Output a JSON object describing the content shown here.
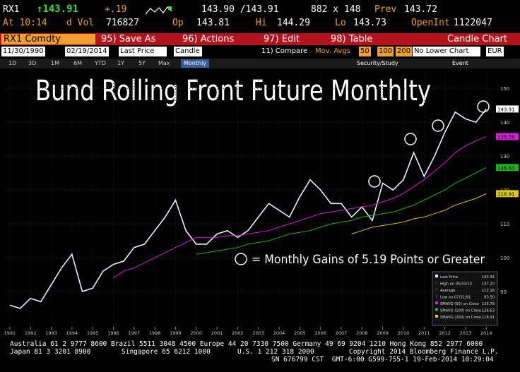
{
  "header": {
    "row1": {
      "ticker": "RX1",
      "last": "143.91",
      "change": "+.19",
      "bid_ask": "143.90 /143.91",
      "size": "882 x 148",
      "prev_label": "Prev",
      "prev": "143.72"
    },
    "row2": {
      "time": "At 10:14",
      "vol_label": "d Vol",
      "vol": "716827",
      "op_label": "Op",
      "op": "143.81",
      "hi_label": "Hi",
      "hi": "144.29",
      "lo_label": "Lo",
      "lo": "143.73",
      "oi_label": "OpenInt",
      "oi": "1122047"
    },
    "toolbar": {
      "security": "RX1 Comdty",
      "save": "95) Save As",
      "actions": "96) Actions",
      "edit": "97) Edit",
      "table": "98) Table",
      "chart_type": "Candle Chart"
    },
    "settings": {
      "start": "11/30/1990",
      "end": "02/19/2014",
      "field": "Last Price",
      "style": "Candle",
      "compare": "11) Compare",
      "mov_avgs": "Mov. Avgs",
      "ma1": "50",
      "ma2": "100",
      "ma3": "200",
      "lower": "No Lower Chart",
      "currency": "EUR"
    },
    "ranges": [
      "1D",
      "3D",
      "1M",
      "6M",
      "YTD",
      "1Y",
      "5Y",
      "Max",
      "Monthly"
    ],
    "tools": {
      "study": "Security/Study",
      "event": "Event"
    }
  },
  "chart_data": {
    "type": "line",
    "title": "Bund Rolling Front Future Monthlty",
    "annotation": "= Monthly Gains of 5.19 Points or Greater",
    "x": [
      1991,
      1991.5,
      1992,
      1992.5,
      1993,
      1993.5,
      1994,
      1994.5,
      1995,
      1995.5,
      1996,
      1996.5,
      1997,
      1997.5,
      1998,
      1998.5,
      1999,
      1999.5,
      2000,
      2000.5,
      2001,
      2001.5,
      2002,
      2002.5,
      2003,
      2003.5,
      2004,
      2004.5,
      2005,
      2005.5,
      2006,
      2006.5,
      2007,
      2007.5,
      2008,
      2008.5,
      2009,
      2009.5,
      2010,
      2010.5,
      2011,
      2011.5,
      2012,
      2012.5,
      2013,
      2013.5,
      2014
    ],
    "series": [
      {
        "name": "Last Price",
        "color": "#e8f0ff",
        "values": [
          86,
          85,
          88,
          87,
          92,
          97,
          101,
          90,
          91,
          96,
          98,
          99,
          103,
          104,
          108,
          112,
          117,
          108,
          104,
          104,
          107,
          108,
          106,
          108,
          112,
          116,
          114,
          112,
          118,
          123,
          120,
          116,
          116,
          112,
          115,
          111,
          122,
          120,
          123,
          131,
          124,
          130,
          137,
          143,
          141,
          140,
          143.91
        ]
      },
      {
        "name": "SMAVG (50) on Close",
        "color": "#d21fd2",
        "values": [
          null,
          null,
          null,
          null,
          null,
          null,
          null,
          null,
          null,
          null,
          94,
          96,
          97,
          98.5,
          100,
          101.5,
          103,
          104.5,
          106,
          106,
          106,
          106.5,
          106.5,
          107,
          107.5,
          108,
          109,
          110,
          111,
          112,
          113,
          113.5,
          114,
          114.5,
          115,
          115.5,
          116.5,
          117.5,
          119,
          121,
          123,
          125.5,
          128,
          131,
          133,
          134.5,
          135.78
        ]
      },
      {
        "name": "SMAVG (100) on Close",
        "color": "#1fb31f",
        "values": [
          null,
          null,
          null,
          null,
          null,
          null,
          null,
          null,
          null,
          null,
          null,
          null,
          null,
          null,
          null,
          null,
          null,
          null,
          101,
          101.5,
          102,
          102.5,
          103,
          104,
          104.5,
          105,
          106,
          107,
          107.5,
          108,
          109,
          110,
          110.5,
          111,
          112,
          112.5,
          113,
          113.5,
          114.5,
          115.5,
          117,
          118.5,
          120,
          122,
          123.5,
          125,
          126.63
        ]
      },
      {
        "name": "SMAVG (200) on Close",
        "color": "#e0c81a",
        "values": [
          null,
          null,
          null,
          null,
          null,
          null,
          null,
          null,
          null,
          null,
          null,
          null,
          null,
          null,
          null,
          null,
          null,
          null,
          null,
          null,
          null,
          null,
          null,
          null,
          null,
          null,
          null,
          null,
          null,
          null,
          null,
          null,
          null,
          107,
          108,
          109,
          109.5,
          110,
          110.5,
          111.5,
          112,
          113,
          114,
          115.5,
          116.5,
          117.5,
          118.91
        ]
      }
    ],
    "stats": [
      {
        "label": "High on 05/31/13",
        "value": "147.20"
      },
      {
        "label": "Average",
        "value": "112.16"
      },
      {
        "label": "Low on 07/31/91",
        "value": "83.50"
      }
    ],
    "xlim": [
      1990.8,
      2014.4
    ],
    "xticks": [
      1991,
      1992,
      1993,
      1994,
      1995,
      1996,
      1997,
      1998,
      1999,
      2000,
      2001,
      2002,
      2003,
      2004,
      2005,
      2006,
      2007,
      2008,
      2009,
      2010,
      2011,
      2012,
      2013,
      2014
    ],
    "ylim": [
      80,
      154
    ],
    "yticks": [
      90,
      100,
      110,
      120,
      130,
      140,
      150
    ],
    "grid": true
  },
  "footer": [
    "Australia 61 2 9777 8600 Brazil 5511 3048 4500 Europe 44 20 7330 7500 Germany 49 69 9204 1210 Hong Kong 852 2977 6000",
    "Japan 81 3 3201 8900",
    "Singapore 65 6212 1000",
    "U.S. 1 212 318 2000",
    "Copyright 2014 Bloomberg Finance L.P.",
    "SN 676799 CST  GMT-6:00 G599-755-1 19-Feb-2014 10:29:04"
  ]
}
